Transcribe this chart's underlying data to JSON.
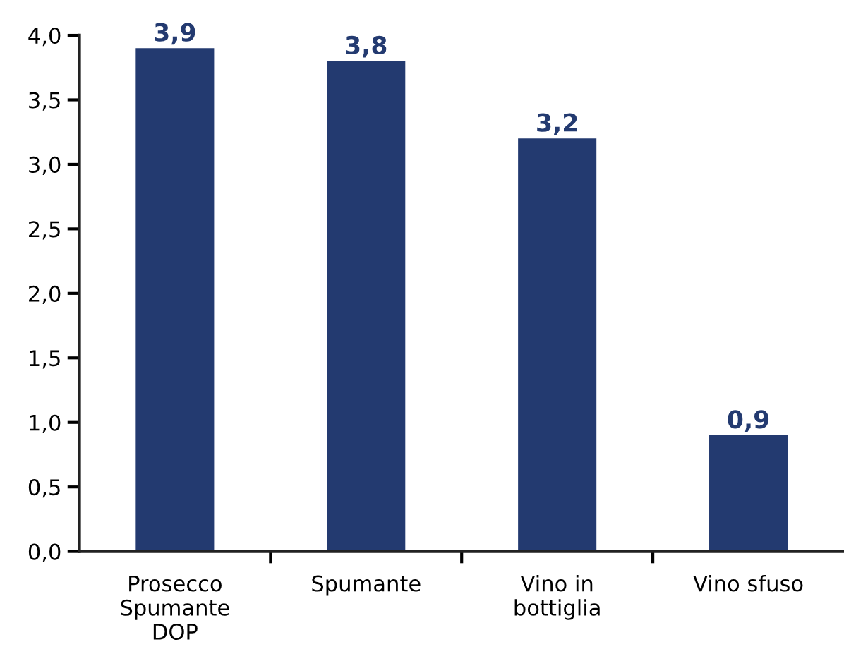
{
  "chart_data": {
    "type": "bar",
    "categories": [
      "Prosecco\nSpumante\nDOP",
      "Spumante",
      "Vino in\nbottiglia",
      "Vino sfuso"
    ],
    "values": [
      3.9,
      3.8,
      3.2,
      0.9
    ],
    "color": "#233a70",
    "value_labels": [
      "3,9",
      "3,8",
      "3,2",
      "0,9"
    ],
    "ylim": [
      0,
      4
    ],
    "yticks": [
      {
        "value": 0,
        "label": "0,0"
      },
      {
        "value": 0.5,
        "label": "0,5"
      },
      {
        "value": 1,
        "label": "1,0"
      },
      {
        "value": 1.5,
        "label": "1,5"
      },
      {
        "value": 2,
        "label": "2,0"
      },
      {
        "value": 2.5,
        "label": "2,5"
      },
      {
        "value": 3,
        "label": "3,0"
      },
      {
        "value": 3.5,
        "label": "3,5"
      },
      {
        "value": 4,
        "label": "4,0"
      }
    ],
    "grid": false,
    "legend": false
  }
}
